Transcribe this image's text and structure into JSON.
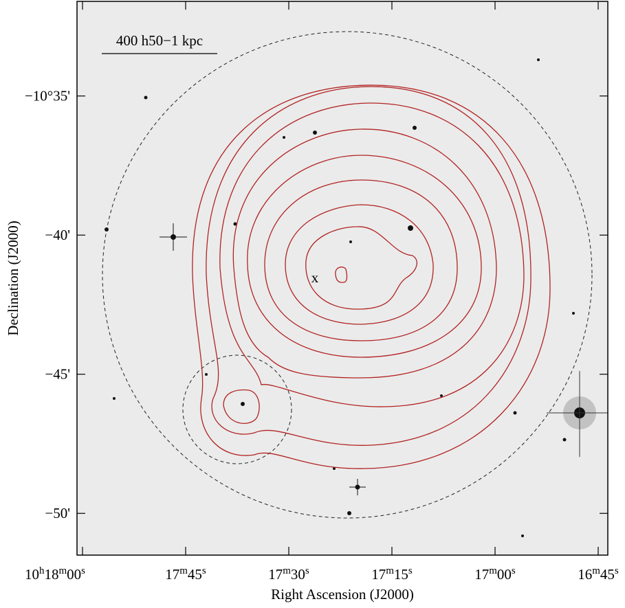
{
  "chart_data": {
    "type": "image",
    "xlabel": "Right Ascension (J2000)",
    "ylabel": "Declination (J2000)",
    "xlim": [
      120.8,
      43.6
    ],
    "ylim": [
      -51.5,
      -31.6
    ],
    "xticks": [
      {
        "value": 120,
        "label": "10h18m00s"
      },
      {
        "value": 105,
        "label": "17m45s"
      },
      {
        "value": 90,
        "label": "17m30s"
      },
      {
        "value": 75,
        "label": "17m15s"
      },
      {
        "value": 60,
        "label": "17m00s"
      },
      {
        "value": 45,
        "label": "16m45s"
      }
    ],
    "yticks": [
      {
        "value": -35,
        "label": "−10°35'"
      },
      {
        "value": -40,
        "label": "−40'"
      },
      {
        "value": -45,
        "label": "−45'"
      },
      {
        "value": -50,
        "label": "−50'"
      }
    ],
    "scale_bar_label": "400 h50−1 kpc",
    "center_marker": "x"
  }
}
